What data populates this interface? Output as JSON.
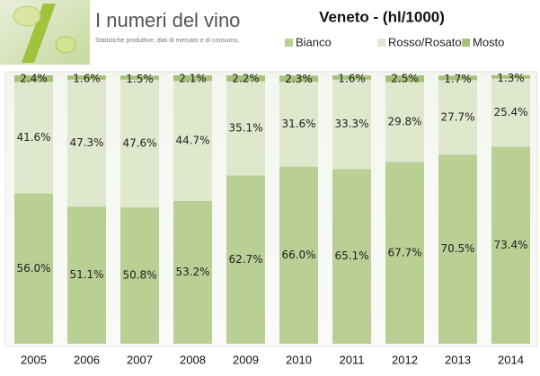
{
  "header": {
    "title": "I numeri del vino",
    "subtitle": "Statistiche produttive, dati di mercato e di consumo,"
  },
  "chart_data": {
    "type": "stacked-bar",
    "title": "Veneto - (hl/1000)",
    "categories": [
      "2005",
      "2006",
      "2007",
      "2008",
      "2009",
      "2010",
      "2011",
      "2012",
      "2013",
      "2014"
    ],
    "ylim": [
      0,
      100
    ],
    "series": [
      {
        "name": "Bianco",
        "color": "#b9cf94",
        "values": [
          56.0,
          51.1,
          50.8,
          53.2,
          62.7,
          66.0,
          65.1,
          67.7,
          70.5,
          73.4
        ],
        "value_labels": [
          "56.0%",
          "51.1%",
          "50.8%",
          "53.2%",
          "62.7%",
          "66.0%",
          "65.1%",
          "67.7%",
          "70.5%",
          "73.4%"
        ]
      },
      {
        "name": "Rosso/Rosato",
        "color": "#dfe8cd",
        "values": [
          41.6,
          47.3,
          47.6,
          44.7,
          35.1,
          31.6,
          33.3,
          29.8,
          27.7,
          25.4
        ],
        "value_labels": [
          "41.6%",
          "47.3%",
          "47.6%",
          "44.7%",
          "35.1%",
          "31.6%",
          "33.3%",
          "29.8%",
          "27.7%",
          "25.4%"
        ]
      },
      {
        "name": "Mosto",
        "color": "#a6c178",
        "values": [
          2.4,
          1.6,
          1.5,
          2.1,
          2.2,
          2.3,
          1.6,
          2.5,
          1.7,
          1.3
        ],
        "value_labels": [
          "2.4%",
          "1.6%",
          "1.5%",
          "2.1%",
          "2.2%",
          "2.3%",
          "1.6%",
          "2.5%",
          "1.7%",
          "1.3%"
        ]
      }
    ]
  }
}
